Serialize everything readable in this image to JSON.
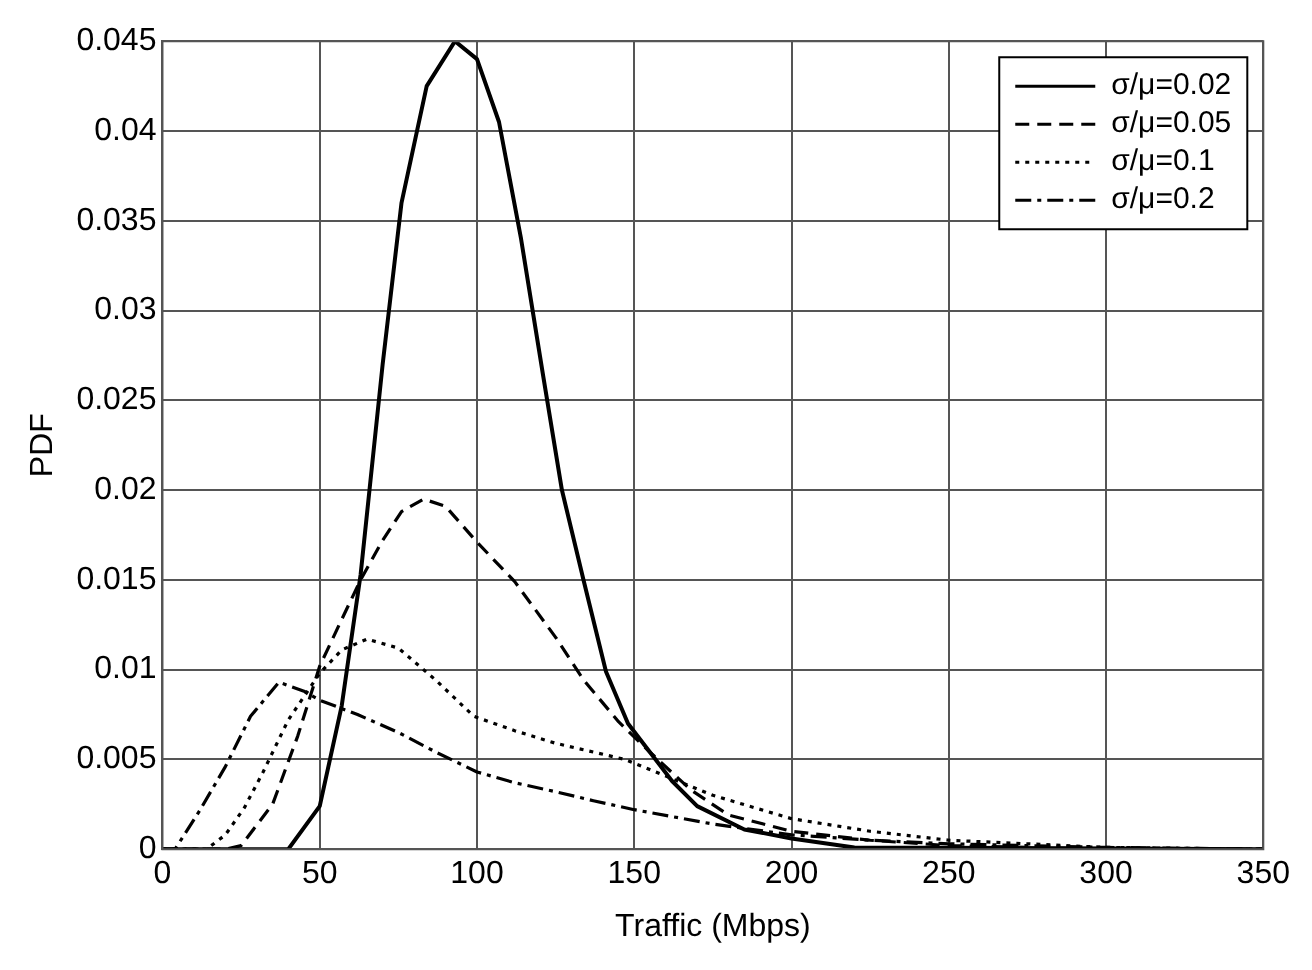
{
  "chart_data": {
    "type": "line",
    "xlabel": "Traffic (Mbps)",
    "ylabel": "PDF",
    "xlim": [
      0,
      350
    ],
    "xticks": [
      0,
      50,
      100,
      150,
      200,
      250,
      300,
      350
    ],
    "ylim": [
      0,
      0.045
    ],
    "yticks": [
      0,
      0.005,
      0.01,
      0.015,
      0.02,
      0.025,
      0.03,
      0.035,
      0.04,
      0.045
    ],
    "grid": true,
    "legend": "top right",
    "marker": "none",
    "series": [
      {
        "name": "σ/μ=0.02",
        "color": "#000000",
        "line_style": "solid",
        "x": [
          0,
          40,
          50,
          57,
          63,
          70,
          76,
          84,
          93,
          100,
          107,
          114,
          121,
          127,
          134,
          141,
          148,
          155,
          162,
          170,
          185,
          200,
          220,
          350
        ],
        "values": [
          0,
          0,
          0.0024,
          0.008,
          0.0153,
          0.027,
          0.036,
          0.0425,
          0.045,
          0.044,
          0.0405,
          0.034,
          0.0264,
          0.02,
          0.0149,
          0.0099,
          0.007,
          0.0054,
          0.0038,
          0.0024,
          0.0011,
          0.0006,
          0.0001,
          0
        ]
      },
      {
        "name": "σ/μ=0.05",
        "color": "#000000",
        "line_style": "dashed",
        "x": [
          0,
          20,
          25,
          35,
          43,
          50,
          57,
          63,
          70,
          76,
          83,
          90,
          100,
          112,
          125,
          134,
          145,
          155,
          168,
          180,
          200,
          225,
          250,
          300,
          350
        ],
        "values": [
          0,
          0,
          0.0002,
          0.0025,
          0.0063,
          0.0102,
          0.0128,
          0.015,
          0.0172,
          0.0188,
          0.0195,
          0.0191,
          0.0171,
          0.0149,
          0.0118,
          0.0094,
          0.0071,
          0.0054,
          0.0033,
          0.0019,
          0.001,
          0.0005,
          0.0002,
          0,
          0
        ]
      },
      {
        "name": "σ/μ=0.1",
        "color": "#000000",
        "line_style": "dotted",
        "x": [
          0,
          14,
          20,
          26,
          32,
          40,
          50,
          57,
          65,
          75,
          87,
          99,
          112,
          125,
          147,
          175,
          200,
          225,
          250,
          300,
          350
        ],
        "values": [
          0,
          0,
          0.0008,
          0.0023,
          0.0043,
          0.0072,
          0.0098,
          0.0111,
          0.0117,
          0.0112,
          0.0094,
          0.0074,
          0.0066,
          0.0059,
          0.005,
          0.003,
          0.0017,
          0.001,
          0.0005,
          0.0001,
          0
        ]
      },
      {
        "name": "σ/μ=0.2",
        "color": "#000000",
        "line_style": "dashdot",
        "x": [
          0,
          4,
          12,
          20,
          28,
          37,
          45,
          50,
          62,
          75,
          87,
          100,
          112,
          125,
          137,
          150,
          175,
          200,
          225,
          250,
          300,
          350
        ],
        "values": [
          0,
          0,
          0.0022,
          0.0046,
          0.0074,
          0.0093,
          0.0088,
          0.0083,
          0.0075,
          0.0065,
          0.0054,
          0.0043,
          0.0037,
          0.0032,
          0.0027,
          0.0022,
          0.0014,
          0.0008,
          0.0005,
          0.0003,
          0.0001,
          0
        ]
      }
    ]
  }
}
